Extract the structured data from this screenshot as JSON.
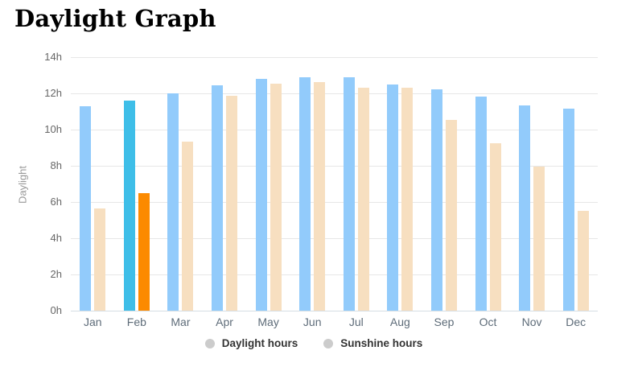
{
  "page": {
    "title": "Daylight Graph"
  },
  "y_axis": {
    "title": "Daylight"
  },
  "chart_data": {
    "type": "bar",
    "title": "Daylight Graph",
    "categories": [
      "Jan",
      "Feb",
      "Mar",
      "Apr",
      "May",
      "Jun",
      "Jul",
      "Aug",
      "Sep",
      "Oct",
      "Nov",
      "Dec"
    ],
    "series": [
      {
        "name": "Daylight hours",
        "values": [
          11.3,
          11.6,
          12.0,
          12.45,
          12.8,
          12.9,
          12.9,
          12.5,
          12.2,
          11.8,
          11.35,
          11.15
        ],
        "color": "#92CBFB",
        "highlight_color": "#3EBEE8"
      },
      {
        "name": "Sunshine hours",
        "values": [
          5.65,
          6.5,
          9.35,
          11.85,
          12.55,
          12.6,
          12.3,
          12.3,
          10.55,
          9.25,
          7.95,
          5.5
        ],
        "color": "#F7DFC0",
        "highlight_color": "#FC8A00"
      }
    ],
    "highlighted_category": "Feb",
    "xlabel": "",
    "ylabel": "Daylight",
    "ylim": [
      0,
      14
    ],
    "ytick_step": 2,
    "ytick_labels": [
      "0h",
      "2h",
      "4h",
      "6h",
      "8h",
      "10h",
      "12h",
      "14h"
    ],
    "grid": true,
    "legend_position": "bottom-center",
    "legend_marker_color": "#cccccc"
  }
}
